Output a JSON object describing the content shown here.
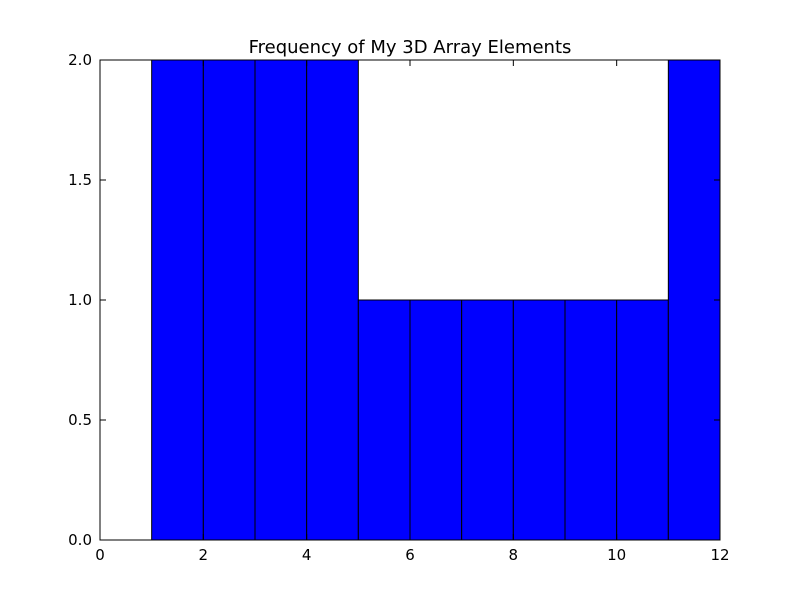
{
  "chart_data": {
    "type": "bar",
    "title": "Frequency of My 3D Array Elements",
    "xlabel": "",
    "ylabel": "",
    "xlim": [
      0,
      12
    ],
    "ylim": [
      0,
      2
    ],
    "x_ticks": [
      0,
      2,
      4,
      6,
      8,
      10,
      12
    ],
    "x_tick_labels": [
      "0",
      "2",
      "4",
      "6",
      "8",
      "10",
      "12"
    ],
    "y_ticks": [
      0,
      0.5,
      1,
      1.5,
      2
    ],
    "y_tick_labels": [
      "0.0",
      "0.5",
      "1.0",
      "1.5",
      "2.0"
    ],
    "bins": [
      {
        "start": 0,
        "end": 1,
        "value": 0
      },
      {
        "start": 1,
        "end": 2,
        "value": 2
      },
      {
        "start": 2,
        "end": 3,
        "value": 2
      },
      {
        "start": 3,
        "end": 4,
        "value": 2
      },
      {
        "start": 4,
        "end": 5,
        "value": 2
      },
      {
        "start": 5,
        "end": 6,
        "value": 1
      },
      {
        "start": 6,
        "end": 7,
        "value": 1
      },
      {
        "start": 7,
        "end": 8,
        "value": 1
      },
      {
        "start": 8,
        "end": 9,
        "value": 1
      },
      {
        "start": 9,
        "end": 10,
        "value": 1
      },
      {
        "start": 10,
        "end": 11,
        "value": 1
      },
      {
        "start": 11,
        "end": 12,
        "value": 2
      }
    ],
    "bar_color": "#0000ff",
    "edge_color": "#000000",
    "grid": false,
    "legend": "none"
  }
}
